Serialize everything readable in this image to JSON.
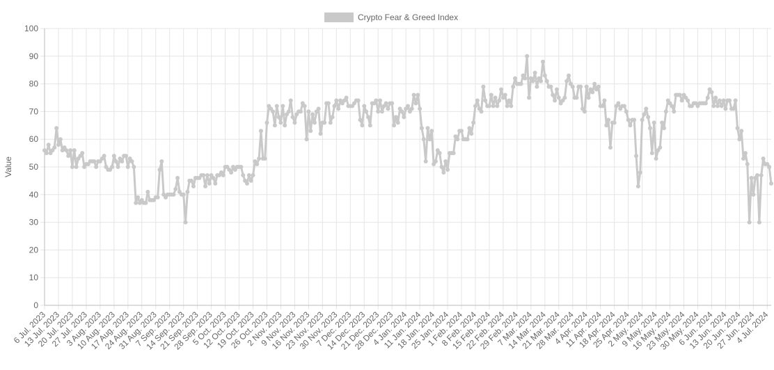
{
  "chart_data": {
    "type": "line",
    "y_label": "Value",
    "categories": [
      "6 Jul. 2023",
      null,
      null,
      null,
      null,
      null,
      null,
      "13 Jul. 2023",
      null,
      null,
      null,
      null,
      null,
      null,
      "20 Jul. 2023",
      null,
      null,
      null,
      null,
      null,
      null,
      "27 Jul. 2023",
      null,
      null,
      null,
      null,
      null,
      null,
      "3 Aug. 2023",
      null,
      null,
      null,
      null,
      null,
      null,
      "10 Aug. 2023",
      null,
      null,
      null,
      null,
      null,
      null,
      "17 Aug. 2023",
      null,
      null,
      null,
      null,
      null,
      null,
      "24 Aug. 2023",
      null,
      null,
      null,
      null,
      null,
      null,
      "31 Aug. 2023",
      null,
      null,
      null,
      null,
      null,
      null,
      "7 Sep. 2023",
      null,
      null,
      null,
      null,
      null,
      null,
      "14 Sep. 2023",
      null,
      null,
      null,
      null,
      null,
      null,
      "21 Sep. 2023",
      null,
      null,
      null,
      null,
      null,
      null,
      "28 Sep. 2023",
      null,
      null,
      null,
      null,
      null,
      null,
      "5 Oct. 2023",
      null,
      null,
      null,
      null,
      null,
      null,
      "12 Oct. 2023",
      null,
      null,
      null,
      null,
      null,
      null,
      "19 Oct. 2023",
      null,
      null,
      null,
      null,
      null,
      null,
      "26 Oct. 2023",
      null,
      null,
      null,
      null,
      null,
      null,
      "2 Nov. 2023",
      null,
      null,
      null,
      null,
      null,
      null,
      "9 Nov. 2023",
      null,
      null,
      null,
      null,
      null,
      null,
      "16 Nov. 2023",
      null,
      null,
      null,
      null,
      null,
      null,
      "23 Nov. 2023",
      null,
      null,
      null,
      null,
      null,
      null,
      "30 Nov. 2023",
      null,
      null,
      null,
      null,
      null,
      null,
      "7 Dec. 2023",
      null,
      null,
      null,
      null,
      null,
      null,
      "14 Dec. 2023",
      null,
      null,
      null,
      null,
      null,
      null,
      "21 Dec. 2023",
      null,
      null,
      null,
      null,
      null,
      null,
      "28 Dec. 2023",
      null,
      null,
      null,
      null,
      null,
      null,
      "4 Jan. 2024",
      null,
      null,
      null,
      null,
      null,
      null,
      "11 Jan. 2024",
      null,
      null,
      null,
      null,
      null,
      null,
      "18 Jan. 2024",
      null,
      null,
      null,
      null,
      null,
      null,
      "25 Jan. 2024",
      null,
      null,
      null,
      null,
      null,
      null,
      "1 Feb. 2024",
      null,
      null,
      null,
      null,
      null,
      null,
      "8 Feb. 2024",
      null,
      null,
      null,
      null,
      null,
      null,
      "15 Feb. 2024",
      null,
      null,
      null,
      null,
      null,
      null,
      "22 Feb. 2024",
      null,
      null,
      null,
      null,
      null,
      null,
      "29 Feb. 2024",
      null,
      null,
      null,
      null,
      null,
      null,
      "7 Mar. 2024",
      null,
      null,
      null,
      null,
      null,
      null,
      "14 Mar. 2024",
      null,
      null,
      null,
      null,
      null,
      null,
      "21 Mar. 2024",
      null,
      null,
      null,
      null,
      null,
      null,
      "28 Mar. 2024",
      null,
      null,
      null,
      null,
      null,
      null,
      "4 Apr. 2024",
      null,
      null,
      null,
      null,
      null,
      null,
      "11 Apr. 2024",
      null,
      null,
      null,
      null,
      null,
      null,
      "18 Apr. 2024",
      null,
      null,
      null,
      null,
      null,
      null,
      "25 Apr. 2024",
      null,
      null,
      null,
      null,
      null,
      null,
      "2 May. 2024",
      null,
      null,
      null,
      null,
      null,
      null,
      "9 May. 2024",
      null,
      null,
      null,
      null,
      null,
      null,
      "16 May. 2024",
      null,
      null,
      null,
      null,
      null,
      null,
      "23 May. 2024",
      null,
      null,
      null,
      null,
      null,
      null,
      "30 May. 2024",
      null,
      null,
      null,
      null,
      null,
      null,
      "6 Jun. 2024",
      null,
      null,
      null,
      null,
      null,
      null,
      "13 Jun. 2024",
      null,
      null,
      null,
      null,
      null,
      null,
      "20 Jun. 2024",
      null,
      null,
      null,
      null,
      null,
      null,
      "27 Jun. 2024",
      null,
      null,
      null,
      null,
      null,
      null,
      "4 Jul. 2024",
      null,
      null
    ],
    "series": [
      {
        "name": "Crypto Fear & Greed Index",
        "color": "#c9c9c9",
        "values": [
          56,
          55,
          58,
          55,
          56,
          57,
          64,
          58,
          60,
          56,
          57,
          56,
          54,
          56,
          50,
          56,
          50,
          53,
          54,
          55,
          50,
          51,
          51,
          52,
          52,
          52,
          50,
          52,
          52,
          53,
          54,
          50,
          49,
          49,
          50,
          54,
          52,
          50,
          53,
          52,
          54,
          54,
          50,
          53,
          52,
          50,
          37,
          39,
          37,
          38,
          37,
          37,
          41,
          38,
          38,
          38,
          39,
          39,
          49,
          52,
          40,
          39,
          40,
          40,
          40,
          40,
          42,
          46,
          41,
          40,
          40,
          30,
          41,
          45,
          45,
          43,
          46,
          46,
          46,
          47,
          47,
          43,
          47,
          44,
          47,
          46,
          44,
          47,
          47,
          48,
          47,
          50,
          50,
          49,
          48,
          50,
          49,
          50,
          50,
          50,
          47,
          45,
          44,
          47,
          45,
          47,
          52,
          51,
          53,
          63,
          53,
          53,
          66,
          72,
          71,
          70,
          65,
          72,
          68,
          66,
          72,
          65,
          69,
          70,
          74,
          68,
          66,
          69,
          70,
          70,
          73,
          72,
          60,
          70,
          63,
          69,
          66,
          70,
          71,
          62,
          66,
          66,
          73,
          73,
          66,
          68,
          72,
          74,
          71,
          74,
          73,
          74,
          75,
          72,
          72,
          72,
          73,
          74,
          74,
          67,
          65,
          72,
          70,
          68,
          65,
          73,
          73,
          74,
          70,
          74,
          70,
          72,
          73,
          71,
          73,
          73,
          65,
          68,
          66,
          71,
          70,
          68,
          71,
          72,
          70,
          71,
          76,
          73,
          76,
          71,
          64,
          60,
          52,
          64,
          60,
          63,
          51,
          52,
          56,
          55,
          50,
          48,
          52,
          49,
          55,
          55,
          55,
          61,
          60,
          63,
          63,
          60,
          60,
          60,
          64,
          62,
          66,
          72,
          74,
          71,
          70,
          79,
          74,
          72,
          72,
          76,
          72,
          75,
          72,
          74,
          78,
          75,
          76,
          72,
          74,
          72,
          79,
          82,
          80,
          80,
          80,
          83,
          82,
          90,
          75,
          82,
          81,
          84,
          79,
          82,
          81,
          88,
          83,
          81,
          79,
          79,
          76,
          74,
          78,
          75,
          73,
          74,
          75,
          81,
          83,
          80,
          79,
          75,
          75,
          79,
          79,
          71,
          70,
          79,
          75,
          78,
          77,
          80,
          78,
          79,
          72,
          72,
          74,
          65,
          67,
          57,
          66,
          66,
          72,
          73,
          71,
          72,
          72,
          70,
          67,
          65,
          67,
          67,
          54,
          43,
          48,
          67,
          69,
          71,
          68,
          64,
          55,
          66,
          53,
          56,
          57,
          66,
          64,
          70,
          74,
          73,
          72,
          70,
          76,
          76,
          76,
          74,
          76,
          75,
          74,
          72,
          72,
          73,
          73,
          72,
          73,
          73,
          73,
          73,
          75,
          78,
          77,
          72,
          75,
          72,
          74,
          72,
          74,
          71,
          74,
          74,
          71,
          71,
          74,
          64,
          60,
          63,
          53,
          55,
          51,
          30,
          46,
          40,
          46,
          47,
          30,
          47,
          53,
          51,
          51,
          50,
          44
        ]
      }
    ],
    "ylim": [
      0,
      100
    ],
    "yticks": [
      0,
      10,
      20,
      30,
      40,
      50,
      60,
      70,
      80,
      90,
      100
    ],
    "grid": true,
    "legend": "top"
  }
}
